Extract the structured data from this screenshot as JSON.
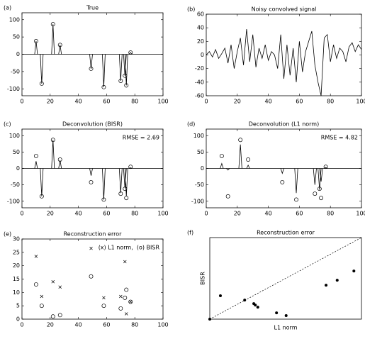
{
  "chart_data": [
    {
      "type": "spikes",
      "label": "(a)",
      "title": "True",
      "x": [
        10,
        14,
        22,
        27,
        49,
        58,
        70,
        73,
        74,
        77
      ],
      "series": [
        {
          "values": [
            38,
            -85,
            87,
            27,
            -42,
            -95,
            -77,
            -62,
            -90,
            5
          ],
          "color": "#000000",
          "line": true,
          "marker": "circle"
        }
      ],
      "xlim": [
        0,
        100
      ],
      "xticks": [
        0,
        20,
        40,
        60,
        80,
        100
      ],
      "ylim": [
        -120,
        120
      ],
      "yticks": [
        -100,
        -50,
        0,
        50,
        100
      ]
    },
    {
      "type": "line",
      "label": "(b)",
      "title": "Noisy convolved signal",
      "x": [
        0,
        2,
        4,
        6,
        8,
        10,
        12,
        14,
        16,
        18,
        20,
        22,
        24,
        26,
        28,
        30,
        32,
        34,
        36,
        38,
        40,
        42,
        44,
        46,
        48,
        50,
        52,
        54,
        56,
        58,
        60,
        62,
        64,
        66,
        68,
        70,
        72,
        74,
        76,
        78,
        80,
        82,
        84,
        86,
        88,
        90,
        92,
        94,
        96,
        98,
        100
      ],
      "series": [
        {
          "values": [
            0,
            5,
            -3,
            8,
            -5,
            2,
            10,
            -12,
            15,
            -20,
            5,
            25,
            -15,
            38,
            -10,
            30,
            -18,
            10,
            -5,
            15,
            -8,
            5,
            0,
            -20,
            30,
            -35,
            15,
            -30,
            10,
            -40,
            20,
            -25,
            5,
            20,
            35,
            -15,
            -40,
            -60,
            25,
            30,
            -10,
            15,
            -5,
            10,
            5,
            -10,
            12,
            18,
            5,
            15,
            8
          ],
          "color": "#000000",
          "line": true
        }
      ],
      "xlim": [
        0,
        100
      ],
      "xticks": [
        0,
        20,
        40,
        60,
        80,
        100
      ],
      "ylim": [
        -60,
        60
      ],
      "yticks": [
        -60,
        -40,
        -20,
        0,
        20,
        40,
        60
      ]
    },
    {
      "type": "spikes",
      "label": "(c)",
      "title": "Deconvolution (BISR)",
      "annotation": "RMSE = 2.69",
      "x": [
        10,
        14,
        22,
        27,
        49,
        58,
        70,
        73,
        74,
        77
      ],
      "series": [
        {
          "values": [
            22,
            -85,
            87,
            25,
            -22,
            -95,
            -75,
            -60,
            -85,
            2
          ],
          "color": "#000000",
          "line": true
        },
        {
          "values": [
            38,
            -85,
            87,
            27,
            -42,
            -95,
            -77,
            -62,
            -90,
            5
          ],
          "color": "#000000",
          "marker": "circle"
        }
      ],
      "xlim": [
        0,
        100
      ],
      "xticks": [
        0,
        20,
        40,
        60,
        80,
        100
      ],
      "ylim": [
        -120,
        120
      ],
      "yticks": [
        -100,
        -50,
        0,
        50,
        100
      ]
    },
    {
      "type": "spikes",
      "label": "(d)",
      "title": "Deconvolution (L1 norm)",
      "annotation": "RMSE = 4.82",
      "x": [
        10,
        14,
        22,
        27,
        49,
        58,
        70,
        73,
        74,
        77
      ],
      "series": [
        {
          "values": [
            15,
            -5,
            73,
            10,
            -15,
            -75,
            -50,
            -65,
            -40,
            3
          ],
          "color": "#000000",
          "line": true
        },
        {
          "values": [
            38,
            -85,
            87,
            27,
            -42,
            -95,
            -77,
            -62,
            -90,
            5
          ],
          "color": "#000000",
          "marker": "circle"
        }
      ],
      "xlim": [
        0,
        100
      ],
      "xticks": [
        0,
        20,
        40,
        60,
        80,
        100
      ],
      "ylim": [
        -120,
        120
      ],
      "yticks": [
        -100,
        -50,
        0,
        50,
        100
      ]
    },
    {
      "type": "scatter",
      "label": "(e)",
      "title": "Reconstruction error",
      "annotation": "(x) L1 norm,  (o) BISR",
      "x": [
        10,
        14,
        22,
        27,
        49,
        58,
        70,
        73,
        74,
        77
      ],
      "series": [
        {
          "values": [
            23.5,
            8.5,
            14,
            12,
            26.5,
            8,
            8.5,
            21.5,
            2,
            6.5
          ],
          "color": "#000000",
          "marker": "x"
        },
        {
          "values": [
            13,
            5,
            1,
            1.5,
            16,
            5,
            4,
            8,
            11,
            6.5
          ],
          "color": "#000000",
          "marker": "circle"
        }
      ],
      "xlim": [
        0,
        100
      ],
      "xticks": [
        0,
        20,
        40,
        60,
        80,
        100
      ],
      "ylim": [
        0,
        30
      ],
      "yticks": [
        0,
        5,
        10,
        15,
        20,
        25,
        30
      ]
    },
    {
      "type": "scatter",
      "label": "(f)",
      "title": "Reconstruction error",
      "xlabel": "L1 norm",
      "ylabel": "BISR",
      "diagonal": "dashed",
      "x": [
        0,
        2.1,
        6.9,
        8.7,
        9.0,
        9.5,
        13.2,
        15.1,
        23,
        25.2,
        28.5
      ],
      "series": [
        {
          "values": [
            0,
            8.6,
            7.0,
            5.7,
            5.2,
            4.4,
            2.3,
            1.3,
            12.5,
            14.3,
            17.7
          ],
          "color": "#000000",
          "marker": "dot"
        }
      ],
      "xlim": [
        0,
        30
      ],
      "ylim": [
        0,
        30
      ]
    }
  ]
}
